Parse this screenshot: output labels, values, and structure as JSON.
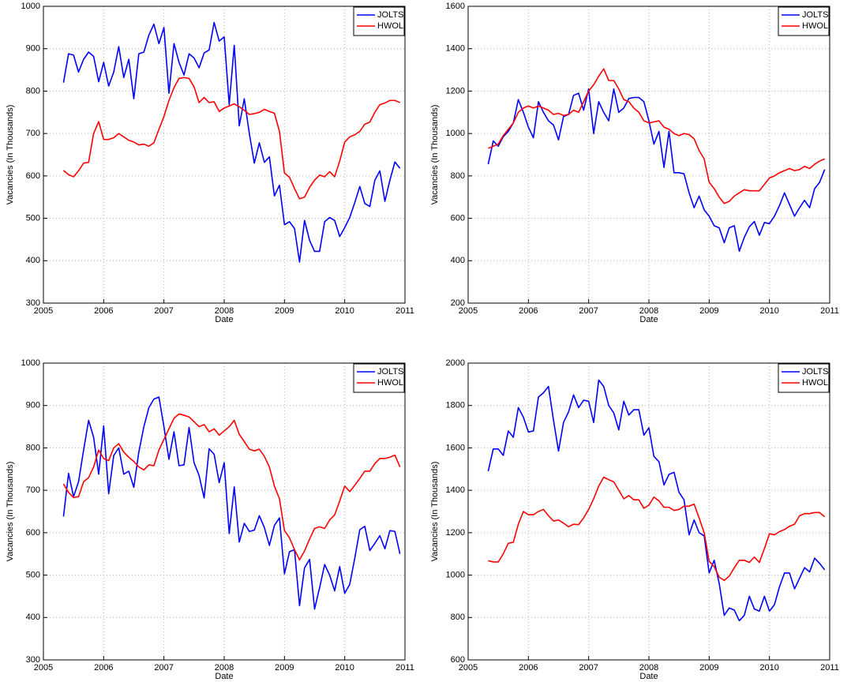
{
  "chart_data": [
    {
      "type": "line",
      "xlabel": "Date",
      "ylabel": "Vacancies (In Thousands)",
      "xlim": [
        2005,
        2011
      ],
      "ylim": [
        300,
        1000
      ],
      "xticks": [
        2005,
        2006,
        2007,
        2008,
        2009,
        2010,
        2011
      ],
      "yticks": [
        300,
        400,
        500,
        600,
        700,
        800,
        900,
        1000
      ],
      "grid": true,
      "legend": "upper right",
      "x": [
        2005.333,
        2005.417,
        2005.5,
        2005.583,
        2005.667,
        2005.75,
        2005.833,
        2005.917,
        2006,
        2006.083,
        2006.167,
        2006.25,
        2006.333,
        2006.417,
        2006.5,
        2006.583,
        2006.667,
        2006.75,
        2006.833,
        2006.917,
        2007,
        2007.083,
        2007.167,
        2007.25,
        2007.333,
        2007.417,
        2007.5,
        2007.583,
        2007.667,
        2007.75,
        2007.833,
        2007.917,
        2008,
        2008.083,
        2008.167,
        2008.25,
        2008.333,
        2008.417,
        2008.5,
        2008.583,
        2008.667,
        2008.75,
        2008.833,
        2008.917,
        2009,
        2009.083,
        2009.167,
        2009.25,
        2009.333,
        2009.417,
        2009.5,
        2009.583,
        2009.667,
        2009.75,
        2009.833,
        2009.917,
        2010,
        2010.083,
        2010.167,
        2010.25,
        2010.333,
        2010.417,
        2010.5,
        2010.583,
        2010.667,
        2010.75,
        2010.833,
        2010.917
      ],
      "series": [
        {
          "name": "JOLTS",
          "color": "#0000ff",
          "values": [
            820,
            888,
            885,
            845,
            875,
            892,
            882,
            822,
            868,
            812,
            845,
            905,
            832,
            875,
            782,
            888,
            892,
            932,
            958,
            912,
            950,
            795,
            912,
            868,
            838,
            888,
            878,
            855,
            890,
            897,
            962,
            918,
            928,
            768,
            908,
            718,
            782,
            700,
            630,
            678,
            632,
            645,
            553,
            578,
            485,
            492,
            476,
            397,
            495,
            448,
            422,
            422,
            492,
            502,
            495,
            457,
            478,
            502,
            537,
            575,
            535,
            528,
            590,
            612,
            540,
            590,
            633,
            618
          ]
        },
        {
          "name": "HWOL",
          "color": "#ff0000",
          "values": [
            613,
            603,
            598,
            612,
            630,
            632,
            700,
            728,
            686,
            686,
            690,
            700,
            692,
            684,
            680,
            673,
            675,
            670,
            678,
            710,
            740,
            778,
            808,
            830,
            832,
            830,
            810,
            773,
            785,
            773,
            775,
            752,
            760,
            765,
            770,
            763,
            755,
            745,
            747,
            750,
            757,
            752,
            748,
            705,
            607,
            597,
            570,
            546,
            550,
            573,
            590,
            602,
            598,
            610,
            598,
            635,
            680,
            692,
            697,
            705,
            722,
            727,
            750,
            768,
            772,
            778,
            778,
            773
          ]
        }
      ]
    },
    {
      "type": "line",
      "xlabel": "Date",
      "ylabel": "Vacancies (In Thousands)",
      "xlim": [
        2005,
        2011
      ],
      "ylim": [
        200,
        1600
      ],
      "xticks": [
        2005,
        2006,
        2007,
        2008,
        2009,
        2010,
        2011
      ],
      "yticks": [
        200,
        400,
        600,
        800,
        1000,
        1200,
        1400,
        1600
      ],
      "grid": true,
      "legend": "upper right",
      "x": [
        2005.333,
        2005.417,
        2005.5,
        2005.583,
        2005.667,
        2005.75,
        2005.833,
        2005.917,
        2006,
        2006.083,
        2006.167,
        2006.25,
        2006.333,
        2006.417,
        2006.5,
        2006.583,
        2006.667,
        2006.75,
        2006.833,
        2006.917,
        2007,
        2007.083,
        2007.167,
        2007.25,
        2007.333,
        2007.417,
        2007.5,
        2007.583,
        2007.667,
        2007.75,
        2007.833,
        2007.917,
        2008,
        2008.083,
        2008.167,
        2008.25,
        2008.333,
        2008.417,
        2008.5,
        2008.583,
        2008.667,
        2008.75,
        2008.833,
        2008.917,
        2009,
        2009.083,
        2009.167,
        2009.25,
        2009.333,
        2009.417,
        2009.5,
        2009.583,
        2009.667,
        2009.75,
        2009.833,
        2009.917,
        2010,
        2010.083,
        2010.167,
        2010.25,
        2010.333,
        2010.417,
        2010.5,
        2010.583,
        2010.667,
        2010.75,
        2010.833,
        2010.917
      ],
      "series": [
        {
          "name": "JOLTS",
          "color": "#0000ff",
          "values": [
            855,
            965,
            940,
            985,
            1010,
            1050,
            1160,
            1100,
            1030,
            980,
            1150,
            1100,
            1060,
            1040,
            970,
            1080,
            1090,
            1180,
            1190,
            1110,
            1210,
            1000,
            1150,
            1100,
            1060,
            1210,
            1100,
            1120,
            1165,
            1170,
            1170,
            1150,
            1060,
            950,
            1010,
            840,
            1010,
            815,
            815,
            810,
            720,
            650,
            705,
            640,
            610,
            565,
            555,
            485,
            555,
            565,
            445,
            510,
            560,
            585,
            520,
            580,
            575,
            610,
            660,
            720,
            665,
            610,
            650,
            685,
            650,
            740,
            770,
            830
          ]
        },
        {
          "name": "HWOL",
          "color": "#ff0000",
          "values": [
            930,
            940,
            950,
            990,
            1020,
            1050,
            1100,
            1120,
            1130,
            1120,
            1130,
            1120,
            1110,
            1090,
            1095,
            1085,
            1090,
            1110,
            1100,
            1150,
            1200,
            1230,
            1270,
            1305,
            1250,
            1250,
            1210,
            1160,
            1150,
            1120,
            1100,
            1060,
            1050,
            1055,
            1060,
            1030,
            1020,
            1000,
            990,
            1000,
            995,
            975,
            920,
            880,
            770,
            740,
            700,
            670,
            680,
            705,
            720,
            735,
            730,
            730,
            730,
            760,
            790,
            800,
            815,
            825,
            835,
            825,
            830,
            845,
            835,
            855,
            870,
            880
          ]
        }
      ]
    },
    {
      "type": "line",
      "xlabel": "Date",
      "ylabel": "Vacancies (In Thousands)",
      "xlim": [
        2005,
        2011
      ],
      "ylim": [
        300,
        1000
      ],
      "xticks": [
        2005,
        2006,
        2007,
        2008,
        2009,
        2010,
        2011
      ],
      "yticks": [
        300,
        400,
        500,
        600,
        700,
        800,
        900,
        1000
      ],
      "grid": true,
      "legend": "upper right",
      "x": [
        2005.333,
        2005.417,
        2005.5,
        2005.583,
        2005.667,
        2005.75,
        2005.833,
        2005.917,
        2006,
        2006.083,
        2006.167,
        2006.25,
        2006.333,
        2006.417,
        2006.5,
        2006.583,
        2006.667,
        2006.75,
        2006.833,
        2006.917,
        2007,
        2007.083,
        2007.167,
        2007.25,
        2007.333,
        2007.417,
        2007.5,
        2007.583,
        2007.667,
        2007.75,
        2007.833,
        2007.917,
        2008,
        2008.083,
        2008.167,
        2008.25,
        2008.333,
        2008.417,
        2008.5,
        2008.583,
        2008.667,
        2008.75,
        2008.833,
        2008.917,
        2009,
        2009.083,
        2009.167,
        2009.25,
        2009.333,
        2009.417,
        2009.5,
        2009.583,
        2009.667,
        2009.75,
        2009.833,
        2009.917,
        2010,
        2010.083,
        2010.167,
        2010.25,
        2010.333,
        2010.417,
        2010.5,
        2010.583,
        2010.667,
        2010.75,
        2010.833,
        2010.917
      ],
      "series": [
        {
          "name": "JOLTS",
          "color": "#0000ff",
          "values": [
            638,
            740,
            685,
            720,
            795,
            865,
            825,
            738,
            852,
            692,
            782,
            800,
            738,
            745,
            707,
            790,
            850,
            895,
            915,
            920,
            850,
            773,
            838,
            758,
            760,
            848,
            765,
            735,
            682,
            798,
            785,
            718,
            765,
            598,
            708,
            578,
            622,
            603,
            606,
            640,
            612,
            570,
            617,
            635,
            503,
            555,
            560,
            428,
            517,
            537,
            420,
            470,
            525,
            500,
            463,
            520,
            457,
            478,
            540,
            607,
            615,
            558,
            575,
            593,
            562,
            605,
            603,
            550
          ]
        },
        {
          "name": "HWOL",
          "color": "#ff0000",
          "values": [
            715,
            695,
            683,
            685,
            720,
            730,
            755,
            795,
            775,
            770,
            800,
            810,
            790,
            778,
            768,
            755,
            748,
            760,
            758,
            795,
            820,
            845,
            870,
            880,
            877,
            873,
            862,
            850,
            855,
            838,
            845,
            830,
            840,
            850,
            865,
            832,
            815,
            797,
            793,
            797,
            780,
            755,
            710,
            680,
            605,
            588,
            560,
            536,
            557,
            585,
            610,
            614,
            610,
            630,
            642,
            675,
            710,
            697,
            712,
            728,
            745,
            745,
            763,
            775,
            775,
            778,
            783,
            755
          ]
        }
      ]
    },
    {
      "type": "line",
      "xlabel": "Date",
      "ylabel": "Vacancies (In Thousands)",
      "xlim": [
        2005,
        2011
      ],
      "ylim": [
        600,
        2000
      ],
      "xticks": [
        2005,
        2006,
        2007,
        2008,
        2009,
        2010,
        2011
      ],
      "yticks": [
        600,
        800,
        1000,
        1200,
        1400,
        1600,
        1800,
        2000
      ],
      "grid": true,
      "legend": "upper right",
      "x": [
        2005.333,
        2005.417,
        2005.5,
        2005.583,
        2005.667,
        2005.75,
        2005.833,
        2005.917,
        2006,
        2006.083,
        2006.167,
        2006.25,
        2006.333,
        2006.417,
        2006.5,
        2006.583,
        2006.667,
        2006.75,
        2006.833,
        2006.917,
        2007,
        2007.083,
        2007.167,
        2007.25,
        2007.333,
        2007.417,
        2007.5,
        2007.583,
        2007.667,
        2007.75,
        2007.833,
        2007.917,
        2008,
        2008.083,
        2008.167,
        2008.25,
        2008.333,
        2008.417,
        2008.5,
        2008.583,
        2008.667,
        2008.75,
        2008.833,
        2008.917,
        2009,
        2009.083,
        2009.167,
        2009.25,
        2009.333,
        2009.417,
        2009.5,
        2009.583,
        2009.667,
        2009.75,
        2009.833,
        2009.917,
        2010,
        2010.083,
        2010.167,
        2010.25,
        2010.333,
        2010.417,
        2010.5,
        2010.583,
        2010.667,
        2010.75,
        2010.833,
        2010.917
      ],
      "series": [
        {
          "name": "JOLTS",
          "color": "#0000ff",
          "values": [
            1490,
            1595,
            1595,
            1565,
            1680,
            1650,
            1790,
            1745,
            1675,
            1680,
            1840,
            1860,
            1890,
            1730,
            1585,
            1720,
            1770,
            1850,
            1790,
            1825,
            1820,
            1720,
            1920,
            1890,
            1800,
            1765,
            1685,
            1820,
            1755,
            1780,
            1780,
            1660,
            1695,
            1560,
            1535,
            1425,
            1475,
            1485,
            1390,
            1355,
            1190,
            1260,
            1200,
            1185,
            1010,
            1070,
            960,
            810,
            845,
            835,
            785,
            810,
            900,
            840,
            830,
            900,
            830,
            860,
            945,
            1010,
            1010,
            935,
            985,
            1035,
            1015,
            1080,
            1055,
            1025
          ]
        },
        {
          "name": "HWOL",
          "color": "#ff0000",
          "values": [
            1068,
            1062,
            1062,
            1100,
            1150,
            1155,
            1240,
            1300,
            1285,
            1285,
            1300,
            1310,
            1280,
            1255,
            1260,
            1245,
            1228,
            1240,
            1238,
            1270,
            1310,
            1360,
            1420,
            1462,
            1450,
            1440,
            1400,
            1360,
            1375,
            1355,
            1355,
            1315,
            1330,
            1368,
            1350,
            1320,
            1320,
            1305,
            1310,
            1325,
            1325,
            1335,
            1270,
            1200,
            1065,
            1040,
            990,
            975,
            995,
            1035,
            1070,
            1070,
            1060,
            1085,
            1060,
            1125,
            1195,
            1190,
            1205,
            1215,
            1230,
            1240,
            1280,
            1290,
            1290,
            1295,
            1295,
            1275
          ]
        }
      ]
    }
  ]
}
